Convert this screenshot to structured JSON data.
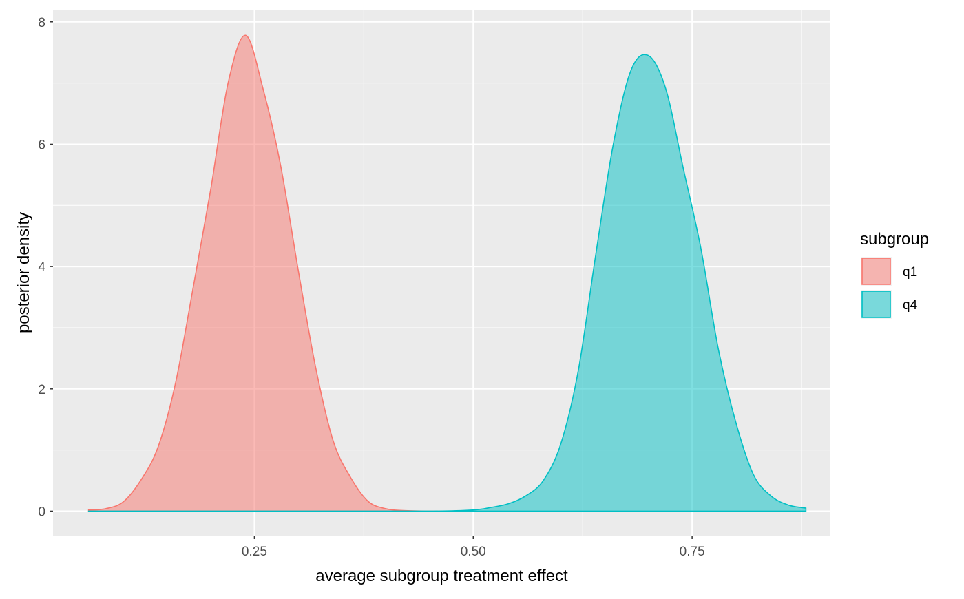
{
  "chart_data": {
    "type": "area",
    "title": "",
    "xlabel": "average subgroup treatment effect",
    "ylabel": "posterior density",
    "xlim": [
      0.02,
      0.908
    ],
    "ylim": [
      -0.4,
      8.2
    ],
    "x_ticks": [
      0.25,
      0.5,
      0.75
    ],
    "x_tick_labels": [
      "0.25",
      "0.50",
      "0.75"
    ],
    "x_minor_ticks": [
      0.125,
      0.375,
      0.625,
      0.875
    ],
    "y_ticks": [
      0,
      2,
      4,
      6,
      8
    ],
    "y_tick_labels": [
      "0",
      "2",
      "4",
      "6",
      "8"
    ],
    "y_minor_ticks": [
      1,
      3,
      5,
      7
    ],
    "grid": true,
    "panel_background": "#ebebeb",
    "legend": {
      "title": "subgroup",
      "position": "right"
    },
    "series": [
      {
        "name": "q1",
        "fill": "#F8766D",
        "fill_opacity": 0.5,
        "stroke": "#F8766D",
        "x": [
          0.06,
          0.08,
          0.1,
          0.12,
          0.14,
          0.16,
          0.18,
          0.2,
          0.22,
          0.24,
          0.26,
          0.28,
          0.3,
          0.32,
          0.34,
          0.36,
          0.38,
          0.4,
          0.42,
          0.45,
          0.5
        ],
        "y": [
          0.02,
          0.04,
          0.15,
          0.5,
          1.05,
          2.1,
          3.65,
          5.25,
          7.0,
          7.78,
          6.9,
          5.65,
          3.95,
          2.35,
          1.15,
          0.55,
          0.16,
          0.04,
          0.01,
          0.0,
          0.0
        ]
      },
      {
        "name": "q4",
        "fill": "#00BFC4",
        "fill_opacity": 0.5,
        "stroke": "#00BFC4",
        "x": [
          0.06,
          0.3,
          0.45,
          0.5,
          0.52,
          0.54,
          0.56,
          0.58,
          0.6,
          0.62,
          0.64,
          0.66,
          0.68,
          0.7,
          0.72,
          0.74,
          0.76,
          0.78,
          0.8,
          0.82,
          0.84,
          0.86,
          0.88
        ],
        "y": [
          0.0,
          0.0,
          0.0,
          0.02,
          0.06,
          0.12,
          0.25,
          0.5,
          1.1,
          2.3,
          4.2,
          6.0,
          7.2,
          7.45,
          6.9,
          5.6,
          4.3,
          2.65,
          1.45,
          0.6,
          0.25,
          0.1,
          0.05
        ]
      }
    ]
  }
}
